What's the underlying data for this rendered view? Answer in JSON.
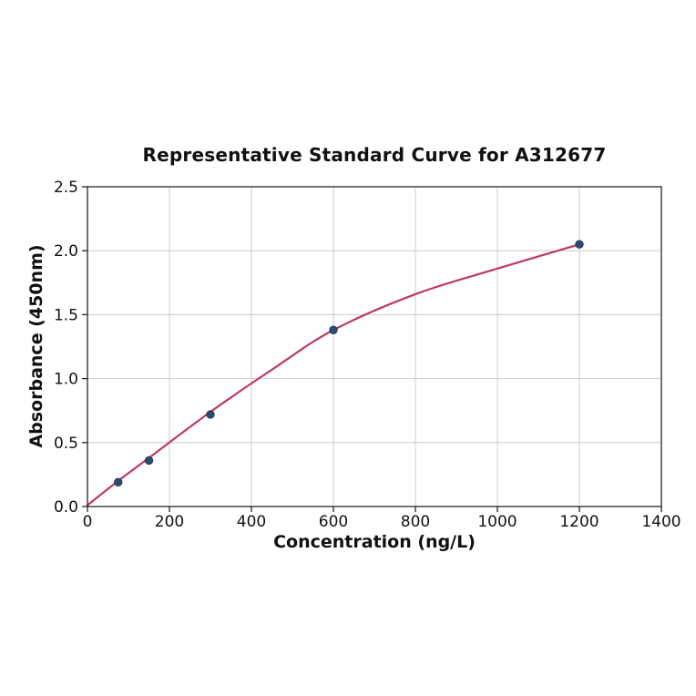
{
  "window": {
    "background": "#ffffff"
  },
  "chart_data": {
    "type": "scatter",
    "title": "Representative Standard Curve for A312677",
    "xlabel": "Concentration (ng/L)",
    "ylabel": "Absorbance (450nm)",
    "xlim": [
      0,
      1400
    ],
    "ylim": [
      0,
      2.5
    ],
    "x_tick_values": [
      0,
      200,
      400,
      600,
      800,
      1000,
      1200,
      1400
    ],
    "x_tick_labels": [
      "0",
      "200",
      "400",
      "600",
      "800",
      "1000",
      "1200",
      "1400"
    ],
    "y_tick_values": [
      0,
      0.5,
      1,
      1.5,
      2,
      2.5
    ],
    "y_tick_labels": [
      "0.0",
      "0.5",
      "1.0",
      "1.5",
      "2.0",
      "2.5"
    ],
    "grid": true,
    "legend": "none",
    "series": [
      {
        "name": "standard-points",
        "type": "scatter",
        "x": [
          75,
          150,
          300,
          600,
          1200
        ],
        "y": [
          0.19,
          0.36,
          0.72,
          1.38,
          2.05
        ],
        "marker_color": "#2d4b6e",
        "marker_edge_color": "#1f3a57"
      },
      {
        "name": "fit-curve",
        "type": "line",
        "x": [
          0,
          75,
          150,
          300,
          450,
          600,
          800,
          1000,
          1200
        ],
        "y": [
          0.01,
          0.2,
          0.38,
          0.74,
          1.07,
          1.38,
          1.66,
          1.86,
          2.05
        ],
        "line_color": "#bd3a5e"
      }
    ],
    "colors": {
      "grid": "#cccccc",
      "axis": "#262626",
      "text": "#111111",
      "background": "#ffffff"
    }
  }
}
